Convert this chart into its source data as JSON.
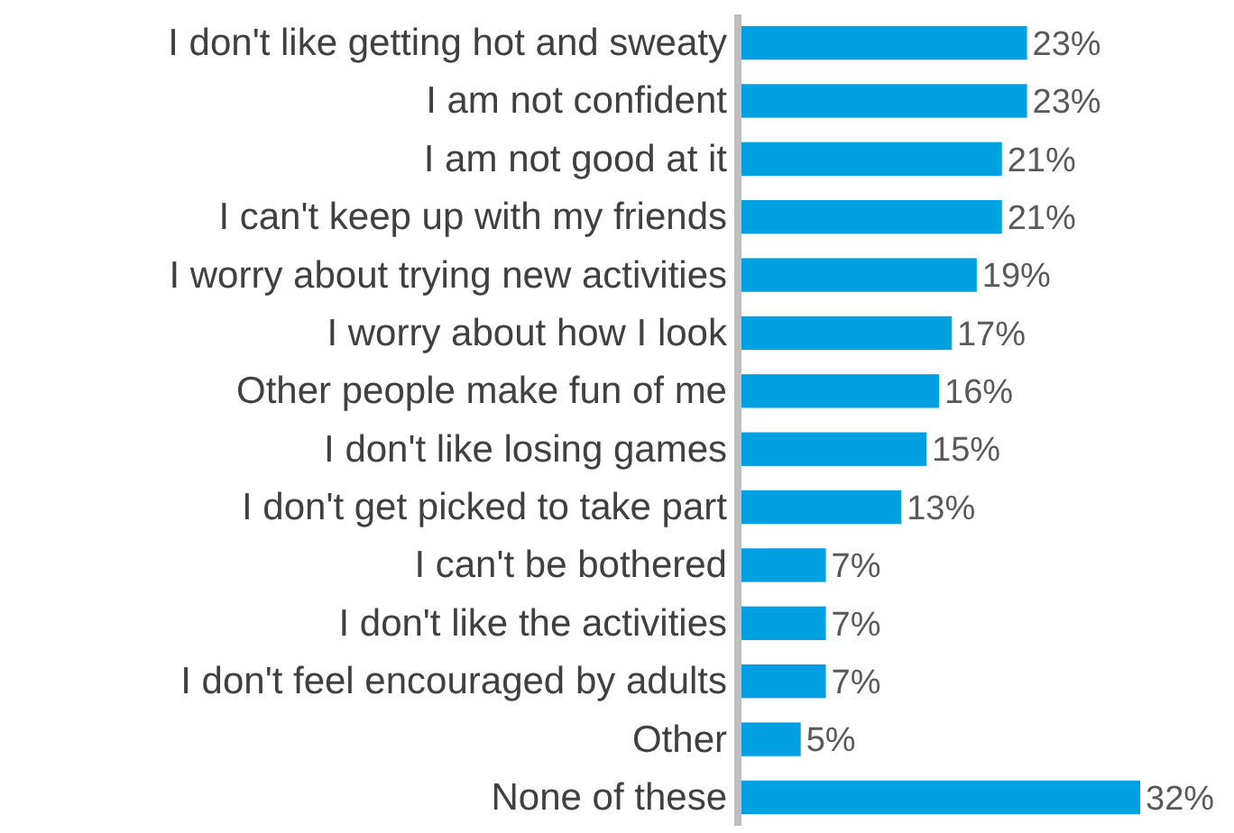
{
  "chart_data": {
    "type": "bar",
    "orientation": "horizontal",
    "categories": [
      "I don't like getting hot and sweaty",
      "I am not confident",
      "I am not good at it",
      "I can't keep up with my friends",
      "I worry about trying new activities",
      "I worry about how I look",
      "Other people make fun of me",
      "I don't like losing games",
      "I don't get picked to take part",
      "I can't be bothered",
      "I don't like the activities",
      "I don't feel encouraged by adults",
      "Other",
      "None of these"
    ],
    "values": [
      23,
      23,
      21,
      21,
      19,
      17,
      16,
      15,
      13,
      7,
      7,
      7,
      5,
      32
    ],
    "value_labels": [
      "23%",
      "23%",
      "21%",
      "21%",
      "19%",
      "17%",
      "16%",
      "15%",
      "13%",
      "7%",
      "7%",
      "7%",
      "5%",
      "32%"
    ],
    "color": "#00a0e3"
  }
}
